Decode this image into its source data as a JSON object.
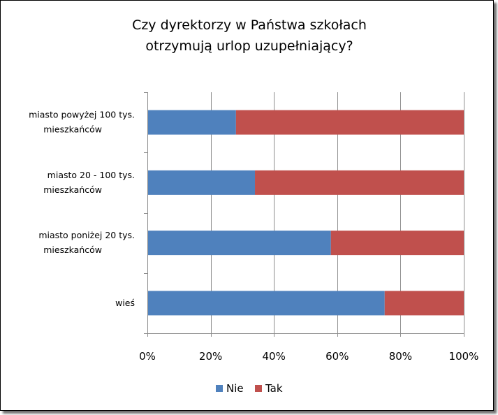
{
  "chart_data": {
    "type": "bar",
    "orientation": "horizontal",
    "stacked": "percent",
    "title_lines": [
      "Czy dyrektorzy w Państwa szkołach",
      "otrzymują urlop uzupełniający?"
    ],
    "categories": [
      [
        "miasto powyżej 100 tys.",
        "mieszkańców"
      ],
      [
        "miasto 20 - 100 tys.",
        "mieszkańców"
      ],
      [
        "miasto poniżej 20 tys.",
        "mieszkańców"
      ],
      [
        "wieś"
      ]
    ],
    "series": [
      {
        "name": "Nie",
        "color": "#4f81bd",
        "values": [
          28,
          34,
          58,
          75
        ]
      },
      {
        "name": "Tak",
        "color": "#c0504d",
        "values": [
          72,
          66,
          42,
          25
        ]
      }
    ],
    "xlim": [
      0,
      100
    ],
    "x_ticks": [
      "0%",
      "20%",
      "40%",
      "60%",
      "80%",
      "100%"
    ],
    "grid": true,
    "legend_position": "bottom"
  }
}
